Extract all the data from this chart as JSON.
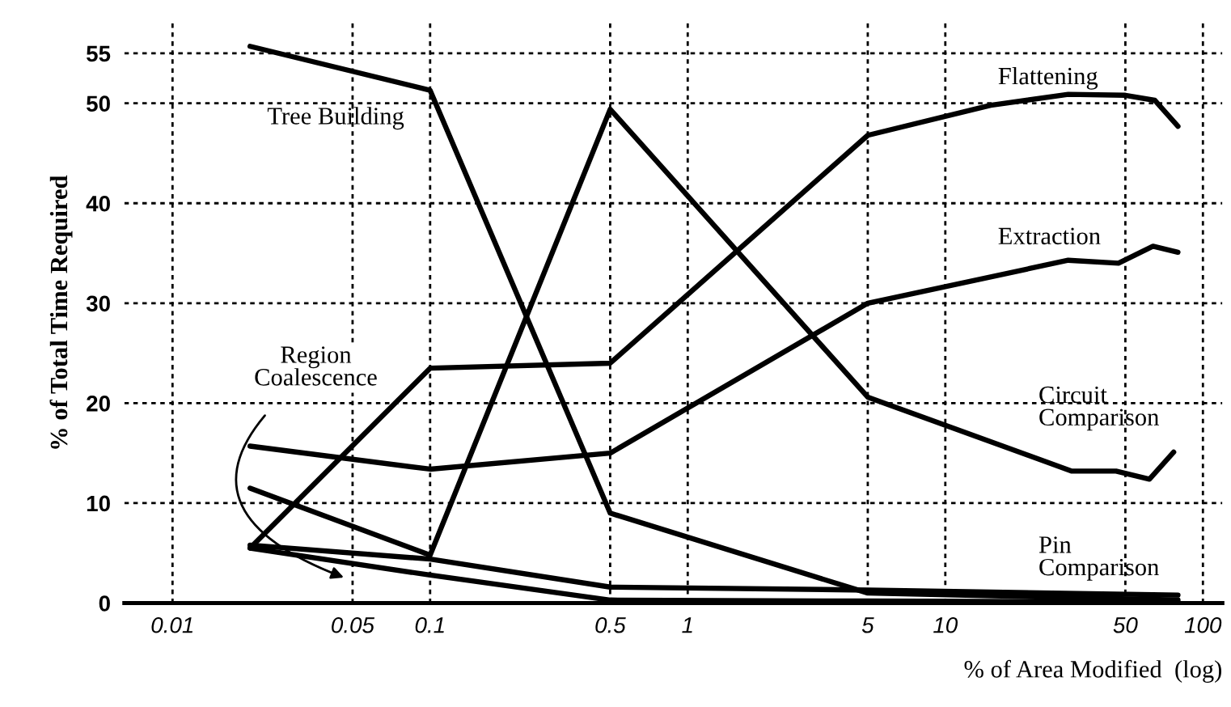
{
  "chart_data": {
    "type": "line",
    "xlabel": "% of Area Modified  (log)",
    "ylabel": "% of Total Time Required",
    "log": "x",
    "grid": true,
    "legend": false,
    "marker": "none",
    "line_style": "solid",
    "xlim": [
      0.0065,
      119
    ],
    "xticks": [
      0.01,
      0.05,
      0.1,
      0.5,
      1,
      5,
      10,
      50,
      100
    ],
    "ylim": [
      0,
      58
    ],
    "yticks": [
      0,
      10,
      20,
      30,
      40,
      50,
      55
    ],
    "series": [
      {
        "name": "Tree Building",
        "color": "#000000",
        "x": [
          0.02,
          0.1,
          0.5,
          5,
          80
        ],
        "values": [
          55.7,
          51.3,
          9,
          1.0,
          0.3
        ]
      },
      {
        "name": "Flattening",
        "color": "#000000",
        "x": [
          0.02,
          0.1,
          0.5,
          5,
          15,
          30,
          50,
          65,
          80
        ],
        "values": [
          5.5,
          23.5,
          24,
          46.8,
          49.8,
          50.9,
          50.8,
          50.3,
          47.7
        ]
      },
      {
        "name": "Extraction",
        "color": "#000000",
        "x": [
          0.02,
          0.1,
          0.5,
          5,
          30,
          47,
          64,
          80
        ],
        "values": [
          15.7,
          13.4,
          15,
          30,
          34.3,
          34,
          35.7,
          35.1
        ]
      },
      {
        "name": "Circuit Comparison",
        "color": "#000000",
        "x": [
          0.02,
          0.1,
          0.5,
          5,
          31,
          46,
          62,
          77
        ],
        "values": [
          11.5,
          4.8,
          49.4,
          20.6,
          13.2,
          13.2,
          12.4,
          15.1
        ]
      },
      {
        "name": "Pin Comparison",
        "color": "#000000",
        "x": [
          0.02,
          0.1,
          0.5,
          5,
          80
        ],
        "values": [
          5.8,
          4.4,
          1.6,
          1.3,
          0.8
        ]
      },
      {
        "name": "Region Coalescence",
        "color": "#000000",
        "x": [
          0.02,
          0.1,
          0.5,
          5,
          80
        ],
        "values": [
          5.5,
          2.8,
          0.3,
          0.2,
          0.1
        ]
      }
    ]
  }
}
